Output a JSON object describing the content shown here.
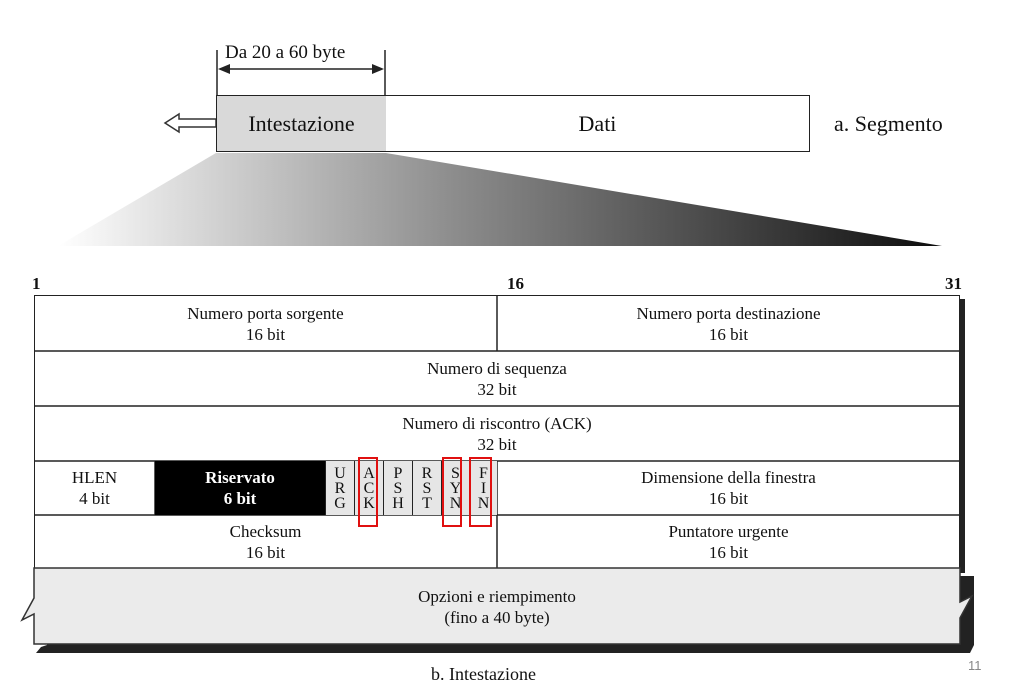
{
  "segment": {
    "size_label": "Da 20 a 60 byte",
    "header_label": "Intestazione",
    "data_label": "Dati",
    "caption": "a. Segmento"
  },
  "header": {
    "bit_start": "1",
    "bit_mid": "16",
    "bit_end": "31",
    "rows": {
      "src_port": {
        "name": "Numero porta sorgente",
        "size": "16 bit"
      },
      "dst_port": {
        "name": "Numero porta destinazione",
        "size": "16 bit"
      },
      "seq": {
        "name": "Numero di sequenza",
        "size": "32 bit"
      },
      "ack": {
        "name": "Numero di riscontro (ACK)",
        "size": "32 bit"
      },
      "hlen": {
        "name": "HLEN",
        "size": "4 bit"
      },
      "reserved": {
        "name": "Riservato",
        "size": "6 bit"
      },
      "window": {
        "name": "Dimensione della finestra",
        "size": "16 bit"
      },
      "checksum": {
        "name": "Checksum",
        "size": "16 bit"
      },
      "urgent": {
        "name": "Puntatore urgente",
        "size": "16 bit"
      },
      "options": {
        "name": "Opzioni e riempimento",
        "size": "(fino a 40 byte)"
      }
    },
    "flags": [
      {
        "letters": [
          "U",
          "R",
          "G"
        ],
        "highlighted": false
      },
      {
        "letters": [
          "A",
          "C",
          "K"
        ],
        "highlighted": true
      },
      {
        "letters": [
          "P",
          "S",
          "H"
        ],
        "highlighted": false
      },
      {
        "letters": [
          "R",
          "S",
          "T"
        ],
        "highlighted": false
      },
      {
        "letters": [
          "S",
          "Y",
          "N"
        ],
        "highlighted": true
      },
      {
        "letters": [
          "F",
          "I",
          "N"
        ],
        "highlighted": true
      }
    ],
    "caption": "b. Intestazione"
  },
  "page_number": "11",
  "colors": {
    "highlight": "#e01010",
    "header_fill": "#d9d9d9",
    "options_fill": "#ebebeb"
  }
}
